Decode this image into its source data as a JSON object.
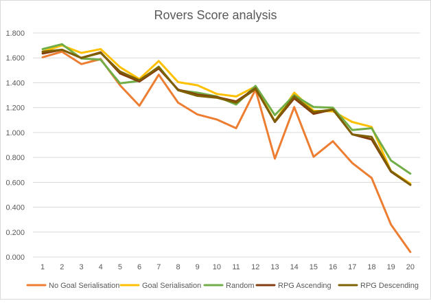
{
  "chart_data": {
    "type": "line",
    "title": "Rovers Score analysis",
    "xlabel": "",
    "ylabel": "",
    "x": [
      1,
      2,
      3,
      4,
      5,
      6,
      7,
      8,
      9,
      10,
      11,
      12,
      13,
      14,
      15,
      16,
      17,
      18,
      19,
      20
    ],
    "ylim": [
      0,
      1.8
    ],
    "yticks": [
      "0.000",
      "0.200",
      "0.400",
      "0.600",
      "0.800",
      "1.000",
      "1.200",
      "1.400",
      "1.600",
      "1.800"
    ],
    "grid": true,
    "legend_position": "bottom",
    "series": [
      {
        "name": "No Goal Serialisation",
        "color": "#ED7D31",
        "values": [
          1.605,
          1.65,
          1.55,
          1.59,
          1.38,
          1.215,
          1.465,
          1.24,
          1.145,
          1.105,
          1.035,
          1.345,
          0.79,
          1.205,
          0.805,
          0.93,
          0.755,
          0.635,
          0.26,
          0.04
        ]
      },
      {
        "name": "Goal Serialisation",
        "color": "#FFC000",
        "values": [
          1.65,
          1.7,
          1.64,
          1.67,
          1.525,
          1.43,
          1.575,
          1.405,
          1.38,
          1.31,
          1.29,
          1.37,
          1.09,
          1.32,
          1.175,
          1.17,
          1.085,
          1.045,
          0.69,
          0.59
        ]
      },
      {
        "name": "Random",
        "color": "#70AD47",
        "values": [
          1.67,
          1.71,
          1.595,
          1.585,
          1.395,
          1.415,
          1.53,
          1.34,
          1.32,
          1.29,
          1.225,
          1.375,
          1.14,
          1.3,
          1.205,
          1.2,
          1.02,
          1.035,
          0.775,
          0.67
        ]
      },
      {
        "name": "RPG Ascending",
        "color": "#843C0C",
        "values": [
          1.635,
          1.665,
          1.6,
          1.645,
          1.475,
          1.41,
          1.515,
          1.345,
          1.305,
          1.285,
          1.25,
          1.355,
          1.085,
          1.275,
          1.15,
          1.185,
          0.985,
          0.945,
          0.685,
          0.58
        ]
      },
      {
        "name": "RPG Descending",
        "color": "#7F6000",
        "values": [
          1.65,
          1.665,
          1.6,
          1.64,
          1.49,
          1.42,
          1.525,
          1.34,
          1.295,
          1.28,
          1.24,
          1.35,
          1.09,
          1.29,
          1.165,
          1.185,
          0.985,
          0.965,
          0.69,
          0.58
        ]
      }
    ]
  }
}
